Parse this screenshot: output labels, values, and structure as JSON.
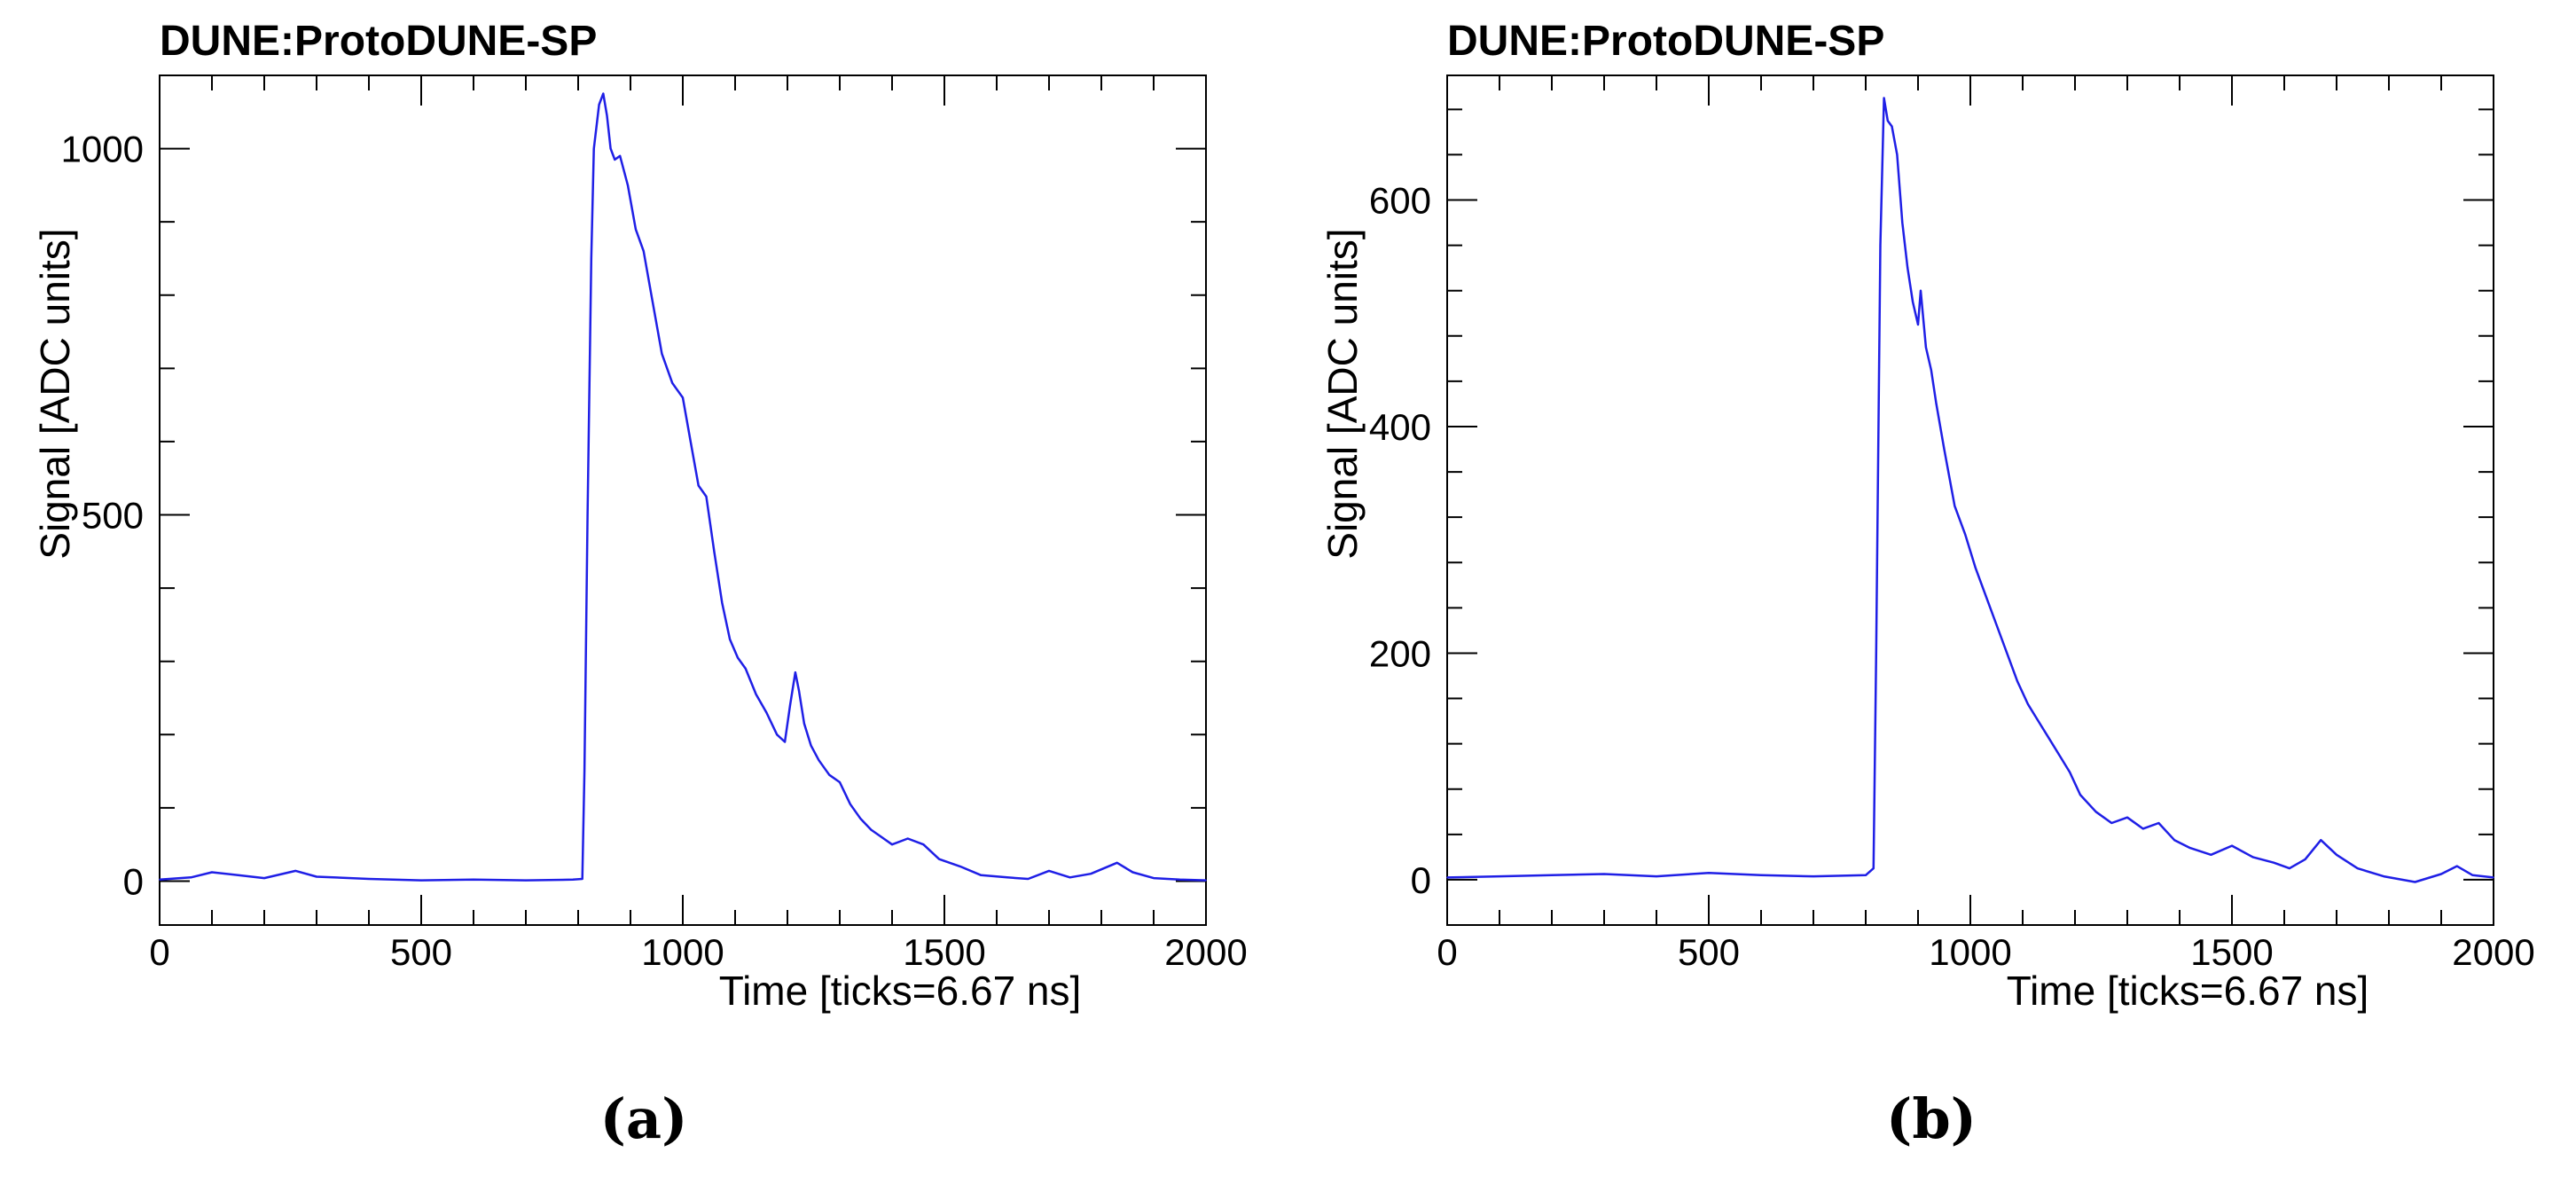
{
  "chart_data": [
    {
      "type": "line",
      "title": "DUNE:ProtoDUNE-SP",
      "xlabel": "Time [ticks=6.67 ns]",
      "ylabel": "Signal [ADC units]",
      "xlim": [
        0,
        2000
      ],
      "ylim": [
        -60,
        1100
      ],
      "x_ticks": [
        0,
        500,
        1000,
        1500,
        2000
      ],
      "y_ticks": [
        0,
        500,
        1000
      ],
      "grid": false,
      "series_color": "#1f1fe6",
      "caption": "(a)",
      "series": [
        {
          "x": [
            0,
            60,
            100,
            150,
            200,
            260,
            300,
            400,
            500,
            600,
            700,
            790,
            808,
            812,
            818,
            825,
            830,
            840,
            848,
            855,
            862,
            870,
            880,
            895,
            910,
            925,
            940,
            960,
            980,
            1000,
            1015,
            1030,
            1045,
            1060,
            1075,
            1090,
            1105,
            1120,
            1140,
            1160,
            1180,
            1195,
            1205,
            1215,
            1222,
            1232,
            1245,
            1260,
            1280,
            1300,
            1320,
            1340,
            1360,
            1380,
            1400,
            1430,
            1460,
            1490,
            1530,
            1570,
            1620,
            1660,
            1700,
            1740,
            1780,
            1830,
            1860,
            1900,
            1950,
            2000
          ],
          "y": [
            2,
            5,
            12,
            8,
            4,
            14,
            6,
            3,
            1,
            2,
            1,
            2,
            3,
            150,
            500,
            850,
            1000,
            1060,
            1075,
            1045,
            1000,
            985,
            990,
            950,
            890,
            860,
            800,
            720,
            680,
            660,
            600,
            540,
            525,
            450,
            380,
            330,
            305,
            290,
            255,
            230,
            200,
            190,
            240,
            285,
            260,
            215,
            185,
            165,
            145,
            135,
            105,
            85,
            70,
            60,
            50,
            58,
            50,
            30,
            20,
            8,
            5,
            3,
            14,
            5,
            10,
            25,
            12,
            4,
            2,
            1
          ]
        }
      ]
    },
    {
      "type": "line",
      "title": "DUNE:ProtoDUNE-SP",
      "xlabel": "Time [ticks=6.67 ns]",
      "ylabel": "Signal [ADC units]",
      "xlim": [
        0,
        2000
      ],
      "ylim": [
        -40,
        710
      ],
      "x_ticks": [
        0,
        500,
        1000,
        1500,
        2000
      ],
      "y_ticks": [
        0,
        200,
        400,
        600
      ],
      "grid": false,
      "series_color": "#1f1fe6",
      "caption": "(b)",
      "series": [
        {
          "x": [
            0,
            100,
            200,
            300,
            400,
            500,
            600,
            700,
            800,
            815,
            820,
            828,
            835,
            842,
            850,
            860,
            870,
            880,
            890,
            900,
            905,
            915,
            925,
            935,
            950,
            970,
            990,
            1010,
            1030,
            1050,
            1070,
            1090,
            1110,
            1130,
            1150,
            1170,
            1190,
            1210,
            1240,
            1270,
            1300,
            1330,
            1360,
            1390,
            1420,
            1460,
            1500,
            1540,
            1580,
            1610,
            1640,
            1670,
            1700,
            1740,
            1790,
            1850,
            1900,
            1930,
            1960,
            2000
          ],
          "y": [
            2,
            3,
            4,
            5,
            3,
            6,
            4,
            3,
            4,
            10,
            200,
            560,
            690,
            670,
            665,
            640,
            580,
            540,
            510,
            490,
            520,
            470,
            450,
            420,
            380,
            330,
            305,
            275,
            250,
            225,
            200,
            175,
            155,
            140,
            125,
            110,
            95,
            75,
            60,
            50,
            55,
            45,
            50,
            35,
            28,
            22,
            30,
            20,
            15,
            10,
            18,
            35,
            22,
            10,
            3,
            -2,
            5,
            12,
            4,
            2
          ]
        }
      ]
    }
  ]
}
